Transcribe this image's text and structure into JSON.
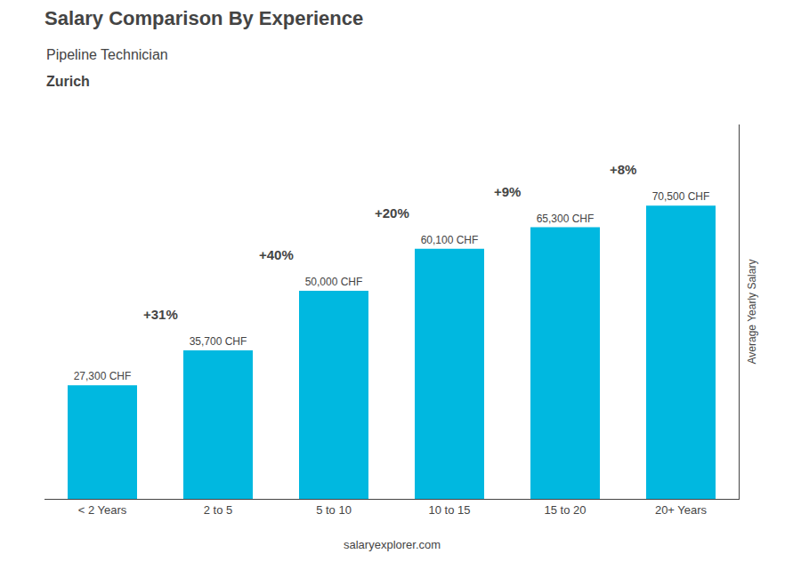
{
  "chart_data": {
    "type": "bar",
    "title": "Salary Comparison By Experience",
    "subtitle": "Pipeline Technician",
    "city": "Zurich",
    "categories": [
      "< 2 Years",
      "2 to 5",
      "5 to 10",
      "10 to 15",
      "15 to 20",
      "20+ Years"
    ],
    "values": [
      27300,
      35700,
      50000,
      60100,
      65300,
      70500
    ],
    "value_labels": [
      "27,300 CHF",
      "35,700 CHF",
      "50,000 CHF",
      "60,100 CHF",
      "65,300 CHF",
      "70,500 CHF"
    ],
    "data_labels": true,
    "color": "#00b8e0",
    "annotations": [
      "+31%",
      "+40%",
      "+20%",
      "+9%",
      "+8%"
    ],
    "ylabel": "Average Yearly Salary",
    "source": "salaryexplorer.com",
    "ylim": [
      0,
      90000
    ],
    "tick_labels": "x",
    "grid": false
  }
}
